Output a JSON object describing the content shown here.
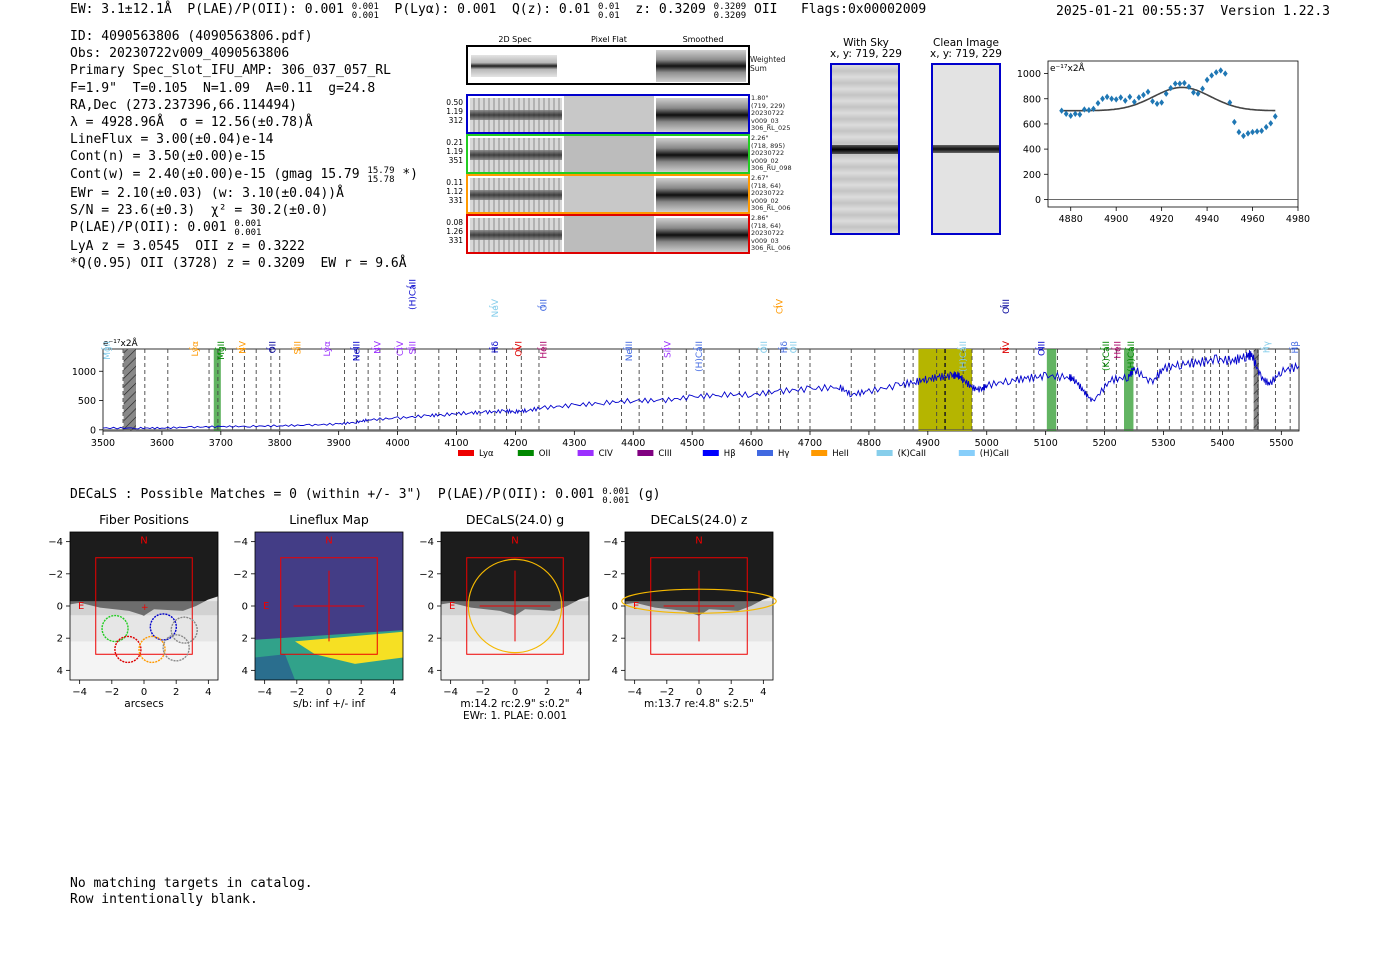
{
  "header": {
    "ew": "EW: 3.1±12.1Å",
    "plae_poii": "P(LAE)/P(OII): 0.001",
    "plae_poii_hi": "0.001",
    "plae_poii_lo": "0.001",
    "p_lya": "P(Lyα): 0.001",
    "qz": "Q(z): 0.01",
    "qz_hi": "0.01",
    "qz_lo": "0.01",
    "z": "z: 0.3209",
    "z_hi": "0.3209",
    "z_lo": "0.3209",
    "z_line": "OII",
    "flags": "Flags:0x00002009",
    "timestamp": "2025-01-21 00:55:37",
    "version": "Version 1.22.3"
  },
  "info": {
    "id": "ID: 4090563806 (4090563806.pdf)",
    "obs": "Obs: 20230722v009_4090563806",
    "primary": "Primary Spec_Slot_IFU_AMP: 306_037_057_RL",
    "f_line": "F=1.9\"  T=0.105  N=1.09  A=0.11  g=24.8",
    "radec": "RA,Dec (273.237396,66.114494)",
    "lambda": "λ = 4928.96Å  σ = 12.56(±0.78)Å",
    "lineflux": "LineFlux = 3.00(±0.04)e-14",
    "cont_n": "Cont(n) = 3.50(±0.00)e-15",
    "cont_w": "Cont(w) = 2.40(±0.00)e-15 (gmag 15.79",
    "gmag_hi": "15.79",
    "gmag_lo": "15.78",
    "cont_w_tail": "*)",
    "ewr": "EWr = 2.10(±0.03) (w: 3.10(±0.04))Å",
    "sn": "S/N = 23.6(±0.3)  χ² = 30.2(±0.0)",
    "plae": "P(LAE)/P(OII): 0.001",
    "plae_hi": "0.001",
    "plae_lo": "0.001",
    "lya_z": "LyA z = 3.0545  OII z = 0.3222",
    "q95": "*Q(0.95) OII (3728) z = 0.3209  EW r = 9.6Å"
  },
  "cutouts": {
    "columns": [
      "2D Spec",
      "Pixel Flat",
      "Smoothed"
    ],
    "weighted_label": "Weighted Sum",
    "rows": [
      {
        "stat": [
          "0.50",
          "1.19",
          "312"
        ],
        "color": "#0000cc",
        "stamp": [
          "1.80\"",
          "(719, 229)",
          "20230722",
          "v009_03",
          "306_RL_025"
        ]
      },
      {
        "stat": [
          "0.21",
          "1.19",
          "351"
        ],
        "color": "#22cc22",
        "stamp": [
          "2.26\"",
          "(718, 895)",
          "20230722",
          "v009_02",
          "306_RU_098"
        ]
      },
      {
        "stat": [
          "0.11",
          "1.12",
          "331"
        ],
        "color": "#ff9900",
        "stamp": [
          "2.67\"",
          "(718, 64)",
          "20230722",
          "v009_02",
          "306_RL_006"
        ]
      },
      {
        "stat": [
          "0.08",
          "1.26",
          "331"
        ],
        "color": "#dd0000",
        "stamp": [
          "2.86\"",
          "(718, 64)",
          "20230722",
          "v009_03",
          "306_RL_006"
        ]
      }
    ]
  },
  "sky": {
    "with_sky_title": "With Sky",
    "with_sky_xy": "x, y: 719, 229",
    "clean_title": "Clean Image",
    "clean_xy": "x, y: 719, 229"
  },
  "chart_data": [
    {
      "type": "scatter",
      "name": "line-fit-zoom",
      "ylabel": "e⁻¹⁷x2Å",
      "xlim": [
        4870,
        4980
      ],
      "ylim": [
        -60,
        1100
      ],
      "xticks": [
        4880,
        4900,
        4920,
        4940,
        4960,
        4980
      ],
      "yticks": [
        0,
        200,
        400,
        600,
        800,
        1000
      ],
      "points_x": [
        4876,
        4878,
        4880,
        4882,
        4884,
        4886,
        4888,
        4890,
        4892,
        4894,
        4896,
        4898,
        4900,
        4902,
        4904,
        4906,
        4908,
        4910,
        4912,
        4914,
        4916,
        4918,
        4920,
        4922,
        4924,
        4926,
        4928,
        4930,
        4932,
        4934,
        4936,
        4938,
        4940,
        4942,
        4944,
        4946,
        4948,
        4950,
        4952,
        4954,
        4956,
        4958,
        4960,
        4962,
        4964,
        4966,
        4968,
        4970
      ],
      "points_y": [
        705,
        680,
        665,
        680,
        675,
        715,
        710,
        720,
        765,
        800,
        815,
        800,
        795,
        810,
        785,
        815,
        775,
        810,
        830,
        855,
        780,
        760,
        770,
        840,
        885,
        920,
        920,
        925,
        895,
        850,
        840,
        880,
        950,
        985,
        1010,
        1025,
        1000,
        770,
        615,
        535,
        505,
        525,
        535,
        540,
        545,
        575,
        605,
        660
      ],
      "fit": {
        "center": 4929,
        "sigma": 12.56,
        "amplitude": 185,
        "baseline": 705
      }
    },
    {
      "type": "line",
      "name": "full-spectrum",
      "ylabel": "e⁻¹⁷x2Å",
      "xlim": [
        3500,
        5530
      ],
      "ylim": [
        -20,
        1380
      ],
      "xticks": [
        3500,
        3600,
        3700,
        3800,
        3900,
        4000,
        4100,
        4200,
        4300,
        4400,
        4500,
        4600,
        4700,
        4800,
        4900,
        5000,
        5100,
        5200,
        5300,
        5400,
        5500
      ],
      "yticks": [
        0,
        500,
        1000
      ],
      "flux_x": [
        3500,
        3560,
        3600,
        3650,
        3700,
        3750,
        3800,
        3850,
        3900,
        3930,
        3950,
        4000,
        4050,
        4080,
        4120,
        4150,
        4180,
        4200,
        4220,
        4250,
        4300,
        4350,
        4400,
        4450,
        4500,
        4550,
        4600,
        4650,
        4700,
        4750,
        4770,
        4800,
        4850,
        4880,
        4900,
        4920,
        4940,
        4950,
        4960,
        4975,
        4990,
        5000,
        5040,
        5070,
        5100,
        5140,
        5150,
        5165,
        5180,
        5210,
        5240,
        5250,
        5280,
        5300,
        5330,
        5360,
        5390,
        5420,
        5440,
        5450,
        5465,
        5480,
        5500,
        5530
      ],
      "flux_y": [
        30,
        30,
        30,
        45,
        55,
        60,
        70,
        80,
        100,
        130,
        170,
        200,
        240,
        260,
        290,
        300,
        320,
        310,
        330,
        380,
        420,
        460,
        500,
        500,
        560,
        600,
        600,
        660,
        700,
        730,
        600,
        660,
        760,
        820,
        870,
        900,
        920,
        940,
        860,
        720,
        680,
        760,
        840,
        880,
        920,
        900,
        850,
        650,
        480,
        850,
        900,
        1040,
        800,
        1050,
        1120,
        1150,
        1200,
        1180,
        1260,
        1280,
        900,
        780,
        1000,
        1090
      ],
      "line_x": [
        3534,
        3571,
        3610,
        3680,
        3695,
        3720,
        3740,
        3760,
        3785,
        3800,
        3910,
        3930,
        3950,
        3970,
        4000,
        4030,
        4070,
        4100,
        4140,
        4165,
        4185,
        4210,
        4240,
        4380,
        4410,
        4450,
        4490,
        4520,
        4580,
        4610,
        4630,
        4650,
        4680,
        4700,
        4770,
        4810,
        4860,
        4875,
        4915,
        4930,
        4960,
        4975,
        4995,
        5050,
        5080,
        5120,
        5170,
        5200,
        5220,
        5255,
        5290,
        5310,
        5330,
        5350,
        5370,
        5380,
        5395,
        5410,
        5440,
        5460,
        5490,
        5515
      ],
      "shaded_regions": [
        {
          "x0": 3535,
          "x1": 3556,
          "kind": "masked",
          "color": "#777777"
        },
        {
          "x0": 3688,
          "x1": 3700,
          "kind": "line",
          "color": "#2e9b2e"
        },
        {
          "x0": 4884,
          "x1": 4975,
          "kind": "selected",
          "color": "#b5b500"
        },
        {
          "x0": 5102,
          "x1": 5118,
          "kind": "line",
          "color": "#2e9b2e"
        },
        {
          "x0": 5233,
          "x1": 5249,
          "kind": "line",
          "color": "#2e9b2e"
        },
        {
          "x0": 5453,
          "x1": 5462,
          "kind": "masked",
          "color": "#777777"
        }
      ],
      "labels": [
        {
          "x": 3507,
          "text": "MgII",
          "color": "#87ceeb",
          "row": 0
        },
        {
          "x": 3656,
          "text": "Lyα",
          "color": "#ff9900",
          "row": 0
        },
        {
          "x": 3700,
          "text": "MgII",
          "color": "#008800",
          "row": 0
        },
        {
          "x": 3737,
          "text": "NV",
          "color": "#ff9900",
          "row": 0
        },
        {
          "x": 3788,
          "text": "OII",
          "color": "#000099",
          "row": 0
        },
        {
          "x": 3830,
          "text": "SiII",
          "color": "#ff9900",
          "row": 0
        },
        {
          "x": 3880,
          "text": "Lyα",
          "color": "#9b30ff",
          "row": 0
        },
        {
          "x": 3930,
          "text": "NeIII",
          "color": "#0000cc",
          "row": 0
        },
        {
          "x": 3966,
          "text": "NV",
          "color": "#9b30ff",
          "row": 0
        },
        {
          "x": 4004,
          "text": "CIV",
          "color": "#9b30ff",
          "row": 0
        },
        {
          "x": 4025,
          "text": "SiII",
          "color": "#9b30ff",
          "row": 0
        },
        {
          "x": 4025,
          "text": "(H)CaII",
          "color": "#0000cc",
          "row": 2
        },
        {
          "x": 4165,
          "text": "Hδ",
          "color": "#0000cc",
          "row": 0
        },
        {
          "x": 4165,
          "text": "NeV",
          "color": "#87ceeb",
          "row": 1
        },
        {
          "x": 4205,
          "text": "OVI",
          "color": "#dd0000",
          "row": 0
        },
        {
          "x": 4248,
          "text": "HeII",
          "color": "#aa0066",
          "row": 0
        },
        {
          "x": 4248,
          "text": "OII",
          "color": "#4169e1",
          "row": 1
        },
        {
          "x": 4393,
          "text": "NeIII",
          "color": "#4169e1",
          "row": 0
        },
        {
          "x": 4458,
          "text": "SiIV",
          "color": "#9b30ff",
          "row": 0
        },
        {
          "x": 4512,
          "text": "(H)CaII",
          "color": "#4169e1",
          "row": 0
        },
        {
          "x": 4622,
          "text": "OII",
          "color": "#87ceeb",
          "row": 0
        },
        {
          "x": 4648,
          "text": "CIV",
          "color": "#ff9900",
          "row": 1
        },
        {
          "x": 4656,
          "text": "Hδ",
          "color": "#4169e1",
          "row": 0
        },
        {
          "x": 4672,
          "text": "OII",
          "color": "#87ceeb",
          "row": 0
        },
        {
          "x": 4960,
          "text": "(H)CaII",
          "color": "#87ceeb",
          "row": 0
        },
        {
          "x": 5033,
          "text": "NV",
          "color": "#dd0000",
          "row": 0
        },
        {
          "x": 5033,
          "text": "OIII",
          "color": "#000099",
          "row": 1
        },
        {
          "x": 5093,
          "text": "OIII",
          "color": "#0000cc",
          "row": 0
        },
        {
          "x": 5202,
          "text": "(K)CaII",
          "color": "#008800",
          "row": 0
        },
        {
          "x": 5222,
          "text": "HeII",
          "color": "#aa0066",
          "row": 0
        },
        {
          "x": 5245,
          "text": "(H)CaII",
          "color": "#008800",
          "row": 0
        },
        {
          "x": 5475,
          "text": "Hγ",
          "color": "#87ceeb",
          "row": 0
        },
        {
          "x": 5540,
          "text": "Hβ",
          "color": "#4169e1",
          "row": 0
        }
      ],
      "legend": [
        {
          "name": "Lyα",
          "color": "#ee0000"
        },
        {
          "name": "OII",
          "color": "#008800"
        },
        {
          "name": "CIV",
          "color": "#9b30ff"
        },
        {
          "name": "CIII",
          "color": "#800080"
        },
        {
          "name": "Hβ",
          "color": "#0000ff"
        },
        {
          "name": "Hγ",
          "color": "#4169e1"
        },
        {
          "name": "HeII",
          "color": "#ff9900"
        },
        {
          "name": "(K)CaII",
          "color": "#87ceeb"
        },
        {
          "name": "(H)CaII",
          "color": "#87cefa"
        }
      ]
    }
  ],
  "decals": {
    "line": "DECaLS : Possible Matches = 0 (within +/- 3\")  P(LAE)/P(OII): 0.001",
    "line_hi": "0.001",
    "line_lo": "0.001",
    "line_tail": "(g)",
    "panels": [
      {
        "title": "Fiber Positions",
        "xlabel": "arcsecs",
        "sub": ""
      },
      {
        "title": "Lineflux Map",
        "xlabel": "s/b: inf +/- inf",
        "sub": ""
      },
      {
        "title": "DECaLS(24.0) g",
        "xlabel": "m:14.2 rc:2.9\"  s:0.2\"",
        "sub": "EWr: 1. PLAE: 0.001"
      },
      {
        "title": "DECaLS(24.0) z",
        "xlabel": "m:13.7  re:4.8\"  s:2.5\"",
        "sub": ""
      }
    ],
    "axis_ticks": [
      "−4",
      "−2",
      "0",
      "2",
      "4"
    ],
    "north": "N",
    "east": "E"
  },
  "footer": {
    "line1": "No matching targets in catalog.",
    "line2": "Row intentionally blank."
  }
}
